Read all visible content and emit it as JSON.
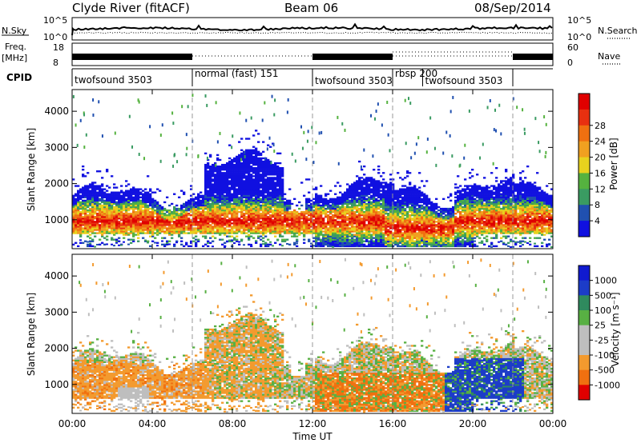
{
  "header": {
    "title": "Clyde River (fitACF)",
    "beam": "Beam 06",
    "date": "08/Sep/2014"
  },
  "nsky_panel": {
    "label_left": "N.Sky",
    "label_right": "N.Search",
    "ticks_left": [
      "10^5",
      "10^0"
    ],
    "ticks_right": [
      "10^5",
      "10^0"
    ]
  },
  "freq_panel": {
    "label_left_line1": "Freq.",
    "label_left_line2": "[MHz]",
    "label_right": "Nave",
    "ticks_left": [
      "18",
      "8"
    ],
    "ticks_right": [
      "60",
      "0"
    ]
  },
  "cpid": {
    "label": "CPID",
    "segments": [
      {
        "name": "twofsound 3503",
        "start": 0,
        "end": 6
      },
      {
        "name": "normal (fast) 151",
        "start": 6,
        "end": 12
      },
      {
        "name": "twofsound 3503",
        "start": 12,
        "end": 16
      },
      {
        "name": "rbsp 200",
        "start": 16,
        "end": 17.5
      },
      {
        "name": "twofsound 3503",
        "start": 17.5,
        "end": 22
      }
    ]
  },
  "colors": {
    "power": [
      "#1010e0",
      "#2050b0",
      "#3a9b62",
      "#55b23f",
      "#e8d21e",
      "#f0a020",
      "#f07010",
      "#e83010",
      "#e00000"
    ],
    "velocity": [
      "#e00000",
      "#f07010",
      "#f39a2e",
      "#bebebe",
      "#bebebe",
      "#58b043",
      "#2f8a5e",
      "#1c3cc8",
      "#101ad0"
    ]
  },
  "chart_data": [
    {
      "type": "heatmap",
      "name": "power",
      "xlabel": "",
      "ylabel": "Slant Range [km]",
      "xlim": [
        0,
        24
      ],
      "ylim": [
        200,
        4600
      ],
      "y_ticks": [
        1000,
        2000,
        3000,
        4000
      ],
      "colorbar_label": "Power [dB]",
      "colorbar_ticks": [
        "4",
        "8",
        "12",
        "16",
        "20",
        "24",
        "28"
      ],
      "clim": [
        0,
        30
      ]
    },
    {
      "type": "heatmap",
      "name": "velocity",
      "xlabel": "Time UT",
      "ylabel": "Slant Range [km]",
      "xlim": [
        0,
        24
      ],
      "ylim": [
        200,
        4600
      ],
      "x_ticks": [
        "00:00",
        "04:00",
        "08:00",
        "12:00",
        "16:00",
        "20:00",
        "00:00"
      ],
      "y_ticks": [
        1000,
        2000,
        3000,
        4000
      ],
      "colorbar_label": "Velocity [m s⁻¹]",
      "colorbar_ticks": [
        "1000",
        "500",
        "100",
        "25",
        "-25",
        "-100",
        "-500",
        "-1000"
      ]
    }
  ]
}
